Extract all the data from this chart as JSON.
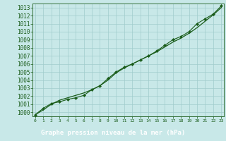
{
  "hours": [
    0,
    1,
    2,
    3,
    4,
    5,
    6,
    7,
    8,
    9,
    10,
    11,
    12,
    13,
    14,
    15,
    16,
    17,
    18,
    19,
    20,
    21,
    22,
    23
  ],
  "pressure_raw": [
    999.7,
    1000.5,
    1001.1,
    1001.3,
    1001.6,
    1001.8,
    1002.1,
    1002.8,
    1003.3,
    1004.2,
    1005.0,
    1005.6,
    1006.0,
    1006.5,
    1007.0,
    1007.6,
    1008.3,
    1009.0,
    1009.4,
    1010.0,
    1011.0,
    1011.6,
    1012.2,
    1013.2
  ],
  "pressure_smooth": [
    999.7,
    1000.3,
    1001.0,
    1001.5,
    1001.8,
    1002.1,
    1002.4,
    1002.8,
    1003.3,
    1004.0,
    1004.9,
    1005.5,
    1006.0,
    1006.5,
    1007.0,
    1007.5,
    1008.1,
    1008.7,
    1009.2,
    1009.8,
    1010.5,
    1011.3,
    1012.1,
    1013.0
  ],
  "ylim_min": 999.5,
  "ylim_max": 1013.5,
  "yticks": [
    1000,
    1001,
    1002,
    1003,
    1004,
    1005,
    1006,
    1007,
    1008,
    1009,
    1010,
    1011,
    1012,
    1013
  ],
  "xlim_min": -0.3,
  "xlim_max": 23.3,
  "xticks": [
    0,
    1,
    2,
    3,
    4,
    5,
    6,
    7,
    8,
    9,
    10,
    11,
    12,
    13,
    14,
    15,
    16,
    17,
    18,
    19,
    20,
    21,
    22,
    23
  ],
  "line_color": "#1a5c1a",
  "bg_color": "#c8e8e8",
  "grid_color": "#a0cccc",
  "footer_bg": "#2a6040",
  "footer_text_color": "#ffffff",
  "xlabel": "Graphe pression niveau de la mer (hPa)"
}
